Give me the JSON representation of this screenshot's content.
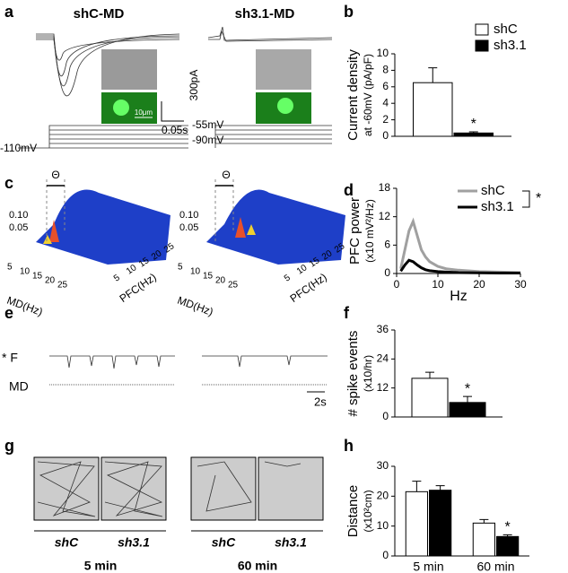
{
  "panel_labels": [
    "a",
    "b",
    "c",
    "d",
    "e",
    "f",
    "g",
    "h"
  ],
  "a": {
    "titles": [
      "shC-MD",
      "sh3.1-MD"
    ],
    "time_scale": "0.05s",
    "current_scale": "300pA",
    "image_scale": "10μm",
    "holding": "-110mV",
    "steps": [
      "-55mV",
      "-90mV"
    ]
  },
  "c": {
    "theta": "Θ",
    "z_labels": [
      "0.10",
      "0.05"
    ],
    "md_ticks": [
      5,
      10,
      15,
      20,
      25
    ],
    "pfc_ticks": [
      5,
      10,
      15,
      20,
      25
    ],
    "md_label": "MD(Hz)",
    "pfc_label": "PFC(Hz)"
  },
  "e": {
    "trace_labels": [
      "* F",
      "MD"
    ],
    "time_scale": "2s"
  },
  "g": {
    "groups": [
      {
        "labels": [
          "shC",
          "sh3.1"
        ],
        "time": "5 min"
      },
      {
        "labels": [
          "shC",
          "sh3.1"
        ],
        "time": "60 min"
      }
    ]
  },
  "chart_data": [
    {
      "type": "bar",
      "y_label": [
        "Current density",
        "at -60mV (pA/pF)"
      ],
      "categories": [
        null
      ],
      "series": [
        {
          "name": "shC",
          "color": "#ffffff",
          "values": [
            6.5
          ],
          "errors": [
            1.8
          ]
        },
        {
          "name": "sh3.1",
          "color": "#000000",
          "values": [
            0.4
          ],
          "errors": [
            0.15
          ]
        }
      ],
      "ylim": [
        0,
        10
      ],
      "yticks": [
        0,
        2,
        4,
        6,
        8,
        10
      ],
      "annotation": "*"
    },
    {
      "type": "line",
      "y_label": [
        "PFC power",
        "(x10 mV²/Hz)"
      ],
      "x_label": "Hz",
      "x": [
        1,
        2,
        3,
        4,
        5,
        6,
        7,
        8,
        10,
        12,
        15,
        20,
        25,
        30
      ],
      "series": [
        {
          "name": "shC",
          "color": "#a0a0a0",
          "values": [
            1,
            5,
            9,
            11,
            8,
            5,
            3.5,
            2.5,
            1.5,
            1,
            0.7,
            0.4,
            0.3,
            0.2
          ]
        },
        {
          "name": "sh3.1",
          "color": "#000000",
          "values": [
            0.5,
            1.8,
            2.8,
            2.5,
            1.8,
            1.2,
            0.8,
            0.6,
            0.4,
            0.3,
            0.2,
            0.15,
            0.1,
            0.1
          ]
        }
      ],
      "xlim": [
        0,
        30
      ],
      "xticks": [
        0,
        10,
        20,
        30
      ],
      "ylim": [
        0,
        18
      ],
      "yticks": [
        0,
        6,
        12,
        18
      ],
      "annotation": "*"
    },
    {
      "type": "bar",
      "y_label": [
        "# spike events",
        "(x10/hr)"
      ],
      "categories": [
        null
      ],
      "series": [
        {
          "name": null,
          "color": "#ffffff",
          "values": [
            16
          ],
          "errors": [
            2.5
          ]
        },
        {
          "name": null,
          "color": "#000000",
          "values": [
            6
          ],
          "errors": [
            2.5
          ]
        }
      ],
      "ylim": [
        0,
        36
      ],
      "yticks": [
        0,
        12,
        24,
        36
      ],
      "annotation": "*"
    },
    {
      "type": "bar",
      "y_label": [
        "Distance",
        "(x10²cm)"
      ],
      "categories": [
        "5 min",
        "60 min"
      ],
      "series": [
        {
          "name": null,
          "color": "#ffffff",
          "values": [
            21.5,
            11
          ],
          "errors": [
            3.5,
            1.2
          ]
        },
        {
          "name": null,
          "color": "#000000",
          "values": [
            22,
            6.5
          ],
          "errors": [
            1.5,
            0.6
          ]
        }
      ],
      "ylim": [
        0,
        30
      ],
      "yticks": [
        0,
        10,
        20,
        30
      ],
      "annotation": "*"
    }
  ]
}
